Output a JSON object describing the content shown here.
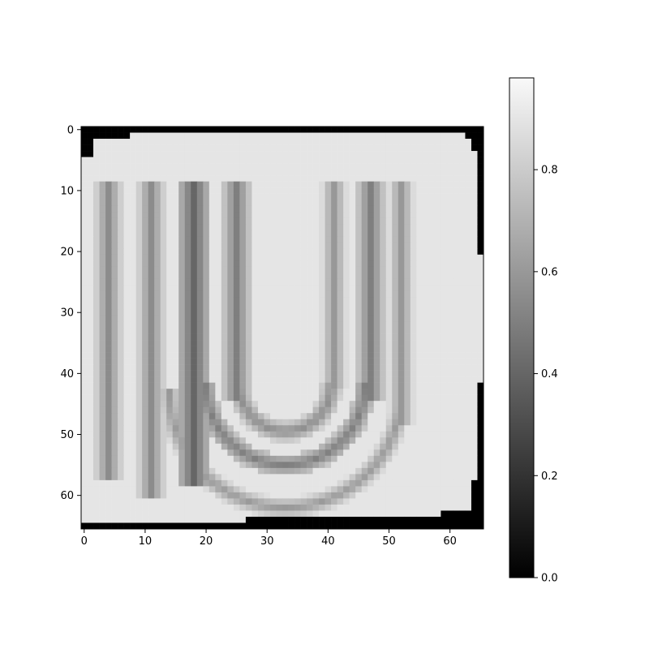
{
  "chart_data": {
    "type": "heatmap",
    "title": "",
    "xlabel": "",
    "ylabel": "",
    "colormap": "gray",
    "image_size": [
      66,
      66
    ],
    "x_ticks": [
      "0",
      "10",
      "20",
      "30",
      "40",
      "50",
      "60"
    ],
    "y_ticks": [
      "0",
      "10",
      "20",
      "30",
      "40",
      "50",
      "60"
    ],
    "colorbar": {
      "min": 0.0,
      "max": 0.98,
      "ticks": [
        "0.0",
        "0.2",
        "0.4",
        "0.6",
        "0.8"
      ]
    },
    "background_value": 0.9,
    "border_value": 0.0,
    "stripes": [
      {
        "orientation": "vertical",
        "x": 4,
        "y_range": [
          9,
          57
        ],
        "value": 0.55
      },
      {
        "orientation": "vertical",
        "x": 11,
        "y_range": [
          9,
          60
        ],
        "value": 0.55
      },
      {
        "orientation": "vertical",
        "x": 18,
        "y_range": [
          9,
          58
        ],
        "value": 0.4
      },
      {
        "orientation": "vertical",
        "x": 25,
        "y_range": [
          9,
          44
        ],
        "value": 0.5
      },
      {
        "orientation": "vertical",
        "x": 41,
        "y_range": [
          9,
          42
        ],
        "value": 0.6
      },
      {
        "orientation": "vertical",
        "x": 47,
        "y_range": [
          9,
          44
        ],
        "value": 0.5
      },
      {
        "orientation": "vertical",
        "x": 52,
        "y_range": [
          9,
          48
        ],
        "value": 0.6
      }
    ],
    "arcs": [
      {
        "cx": 33,
        "cy": 42,
        "r": 7.5,
        "value": 0.55
      },
      {
        "cx": 33,
        "cy": 42,
        "r": 13,
        "value": 0.5
      },
      {
        "cx": 33,
        "cy": 43,
        "r": 19,
        "value": 0.6
      }
    ]
  }
}
